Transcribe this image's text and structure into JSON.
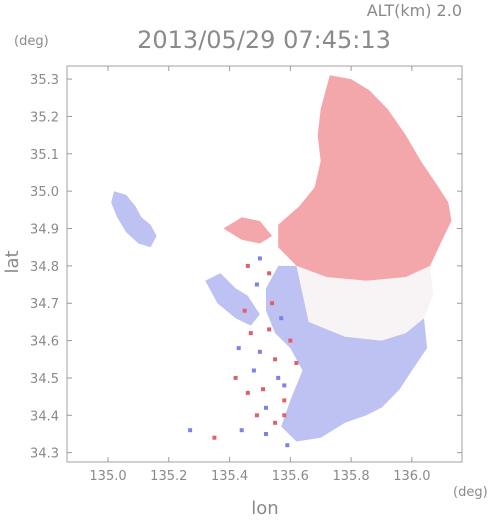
{
  "header": {
    "altitude": "ALT(km)  2.0",
    "datetime": "2013/05/29 07:45:13"
  },
  "chart_data": {
    "type": "heatmap",
    "x_unit_label": "(deg)",
    "y_unit_label": "(deg)",
    "xlabel": "lon",
    "ylabel": "lat",
    "xlim": [
      134.865,
      136.165
    ],
    "ylim": [
      34.275,
      35.335
    ],
    "xticks": [
      135.0,
      135.2,
      135.4,
      135.6,
      135.8,
      136.0
    ],
    "xtick_labels": [
      "135.0",
      "135.2",
      "135.4",
      "135.6",
      "135.8",
      "136.0"
    ],
    "yticks": [
      34.3,
      34.4,
      34.5,
      34.6,
      34.7,
      34.8,
      34.9,
      35.0,
      35.1,
      35.2,
      35.3
    ],
    "ytick_labels": [
      "34.3",
      "34.4",
      "34.5",
      "34.6",
      "34.7",
      "34.8",
      "34.9",
      "35.0",
      "35.1",
      "35.2",
      "35.3"
    ],
    "grid": false,
    "colors": {
      "positive": "#f2a0a4",
      "neutral": "#f7f2f4",
      "negative": "#b9bdf2",
      "axis": "#9a9a9a"
    },
    "regions": [
      {
        "sign": "positive",
        "polygon": [
          [
            135.73,
            35.31
          ],
          [
            135.8,
            35.3
          ],
          [
            135.86,
            35.27
          ],
          [
            135.92,
            35.22
          ],
          [
            135.98,
            35.15
          ],
          [
            136.03,
            35.08
          ],
          [
            136.08,
            35.02
          ],
          [
            136.12,
            34.97
          ],
          [
            136.13,
            34.92
          ],
          [
            136.1,
            34.87
          ],
          [
            136.06,
            34.8
          ],
          [
            135.98,
            34.77
          ],
          [
            135.85,
            34.76
          ],
          [
            135.72,
            34.77
          ],
          [
            135.62,
            34.8
          ],
          [
            135.56,
            34.85
          ],
          [
            135.56,
            34.91
          ],
          [
            135.63,
            34.96
          ],
          [
            135.68,
            35.01
          ],
          [
            135.7,
            35.08
          ],
          [
            135.69,
            35.15
          ],
          [
            135.7,
            35.22
          ]
        ]
      },
      {
        "sign": "neutral",
        "polygon": [
          [
            135.62,
            34.8
          ],
          [
            135.72,
            34.77
          ],
          [
            135.85,
            34.76
          ],
          [
            135.98,
            34.77
          ],
          [
            136.06,
            34.8
          ],
          [
            136.07,
            34.72
          ],
          [
            136.04,
            34.66
          ],
          [
            135.98,
            34.62
          ],
          [
            135.9,
            34.6
          ],
          [
            135.78,
            34.61
          ],
          [
            135.66,
            34.65
          ],
          [
            135.6,
            34.72
          ]
        ]
      },
      {
        "sign": "negative",
        "polygon": [
          [
            135.56,
            34.8
          ],
          [
            135.62,
            34.8
          ],
          [
            135.66,
            34.65
          ],
          [
            135.78,
            34.61
          ],
          [
            135.9,
            34.6
          ],
          [
            135.98,
            34.62
          ],
          [
            136.04,
            34.66
          ],
          [
            136.05,
            34.58
          ],
          [
            136.0,
            34.52
          ],
          [
            135.96,
            34.47
          ],
          [
            135.9,
            34.42
          ],
          [
            135.85,
            34.4
          ],
          [
            135.78,
            34.38
          ],
          [
            135.7,
            34.34
          ],
          [
            135.62,
            34.33
          ],
          [
            135.57,
            34.37
          ],
          [
            135.6,
            34.44
          ],
          [
            135.64,
            34.52
          ],
          [
            135.6,
            34.58
          ],
          [
            135.55,
            34.62
          ],
          [
            135.52,
            34.68
          ],
          [
            135.52,
            34.74
          ]
        ]
      },
      {
        "sign": "negative",
        "polygon": [
          [
            135.02,
            35.0
          ],
          [
            135.06,
            34.99
          ],
          [
            135.09,
            34.96
          ],
          [
            135.11,
            34.93
          ],
          [
            135.14,
            34.91
          ],
          [
            135.16,
            34.88
          ],
          [
            135.14,
            34.85
          ],
          [
            135.1,
            34.86
          ],
          [
            135.06,
            34.89
          ],
          [
            135.03,
            34.93
          ],
          [
            135.01,
            34.97
          ]
        ]
      },
      {
        "sign": "negative",
        "polygon": [
          [
            135.32,
            34.76
          ],
          [
            135.37,
            34.78
          ],
          [
            135.42,
            34.74
          ],
          [
            135.46,
            34.72
          ],
          [
            135.5,
            34.67
          ],
          [
            135.47,
            34.64
          ],
          [
            135.42,
            34.66
          ],
          [
            135.36,
            34.7
          ]
        ]
      },
      {
        "sign": "positive",
        "polygon": [
          [
            135.38,
            34.9
          ],
          [
            135.44,
            34.93
          ],
          [
            135.5,
            34.92
          ],
          [
            135.54,
            34.88
          ],
          [
            135.5,
            34.86
          ],
          [
            135.44,
            34.87
          ]
        ]
      }
    ],
    "speckles": [
      {
        "lon": 135.47,
        "lat": 34.62,
        "sign": "positive"
      },
      {
        "lon": 135.5,
        "lat": 34.57,
        "sign": "negative"
      },
      {
        "lon": 135.53,
        "lat": 34.63,
        "sign": "positive"
      },
      {
        "lon": 135.55,
        "lat": 34.55,
        "sign": "positive"
      },
      {
        "lon": 135.48,
        "lat": 34.52,
        "sign": "negative"
      },
      {
        "lon": 135.51,
        "lat": 34.47,
        "sign": "positive"
      },
      {
        "lon": 135.56,
        "lat": 34.5,
        "sign": "negative"
      },
      {
        "lon": 135.58,
        "lat": 34.44,
        "sign": "positive"
      },
      {
        "lon": 135.52,
        "lat": 34.42,
        "sign": "negative"
      },
      {
        "lon": 135.55,
        "lat": 34.38,
        "sign": "positive"
      },
      {
        "lon": 135.57,
        "lat": 34.66,
        "sign": "negative"
      },
      {
        "lon": 135.45,
        "lat": 34.68,
        "sign": "positive"
      },
      {
        "lon": 135.43,
        "lat": 34.58,
        "sign": "negative"
      },
      {
        "lon": 135.6,
        "lat": 34.6,
        "sign": "positive"
      },
      {
        "lon": 135.54,
        "lat": 34.7,
        "sign": "positive"
      },
      {
        "lon": 135.46,
        "lat": 34.8,
        "sign": "positive"
      },
      {
        "lon": 135.5,
        "lat": 34.82,
        "sign": "negative"
      },
      {
        "lon": 135.53,
        "lat": 34.78,
        "sign": "positive"
      },
      {
        "lon": 135.49,
        "lat": 34.75,
        "sign": "negative"
      },
      {
        "lon": 135.35,
        "lat": 34.34,
        "sign": "positive"
      },
      {
        "lon": 135.27,
        "lat": 34.36,
        "sign": "negative"
      },
      {
        "lon": 135.44,
        "lat": 34.36,
        "sign": "negative"
      },
      {
        "lon": 135.52,
        "lat": 34.35,
        "sign": "negative"
      },
      {
        "lon": 135.58,
        "lat": 34.4,
        "sign": "positive"
      },
      {
        "lon": 135.62,
        "lat": 34.54,
        "sign": "positive"
      },
      {
        "lon": 135.46,
        "lat": 34.46,
        "sign": "positive"
      },
      {
        "lon": 135.59,
        "lat": 34.32,
        "sign": "negative"
      },
      {
        "lon": 135.49,
        "lat": 34.4,
        "sign": "positive"
      },
      {
        "lon": 135.42,
        "lat": 34.5,
        "sign": "positive"
      },
      {
        "lon": 135.58,
        "lat": 34.48,
        "sign": "negative"
      }
    ]
  }
}
